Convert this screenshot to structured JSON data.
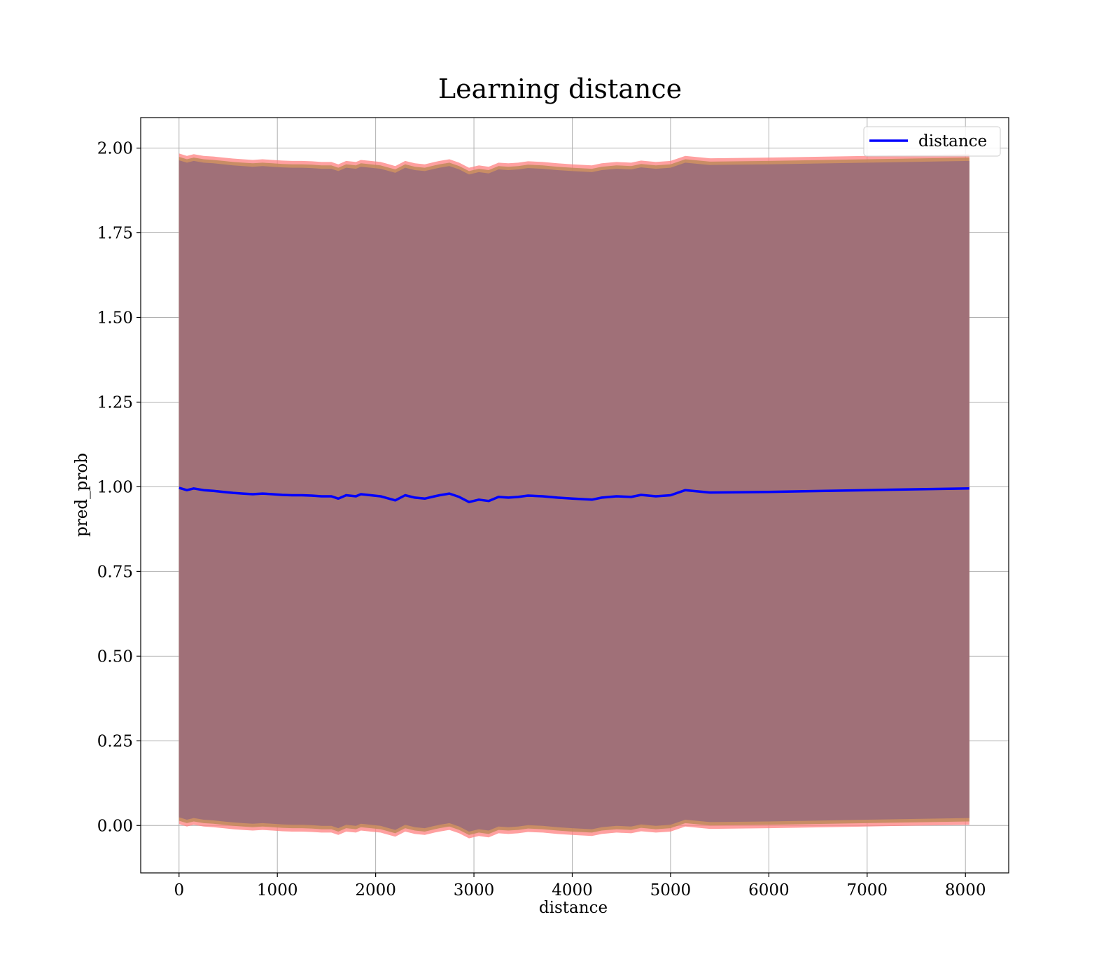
{
  "chart_data": {
    "type": "line",
    "title": "Learning distance",
    "xlabel": "distance",
    "ylabel": "pred_prob",
    "xlim": [
      -390,
      8440
    ],
    "ylim": [
      -0.14,
      2.09
    ],
    "xticks": [
      0,
      1000,
      2000,
      3000,
      4000,
      5000,
      6000,
      7000,
      8000
    ],
    "xtick_labels": [
      "0",
      "1000",
      "2000",
      "3000",
      "4000",
      "5000",
      "6000",
      "7000",
      "8000"
    ],
    "yticks": [
      0.0,
      0.25,
      0.5,
      0.75,
      1.0,
      1.25,
      1.5,
      1.75,
      2.0
    ],
    "ytick_labels": [
      "0.00",
      "0.25",
      "0.50",
      "0.75",
      "1.00",
      "1.25",
      "1.50",
      "1.75",
      "2.00"
    ],
    "grid": true,
    "legend": {
      "position": "top-right",
      "entries": [
        "distance"
      ]
    },
    "colors": {
      "line": "#0000ff",
      "band_outer": "#ff8080",
      "band_mid": "#bf8a5a",
      "band_inner": "#a07078"
    },
    "series": [
      {
        "name": "distance",
        "x": [
          0,
          80,
          150,
          250,
          350,
          450,
          550,
          650,
          750,
          850,
          950,
          1050,
          1150,
          1250,
          1350,
          1450,
          1550,
          1620,
          1700,
          1800,
          1850,
          1950,
          2050,
          2100,
          2200,
          2300,
          2400,
          2500,
          2600,
          2650,
          2750,
          2850,
          2950,
          3050,
          3150,
          3250,
          3350,
          3450,
          3550,
          3700,
          3850,
          4000,
          4200,
          4300,
          4450,
          4600,
          4700,
          4850,
          5000,
          5150,
          5400,
          6000,
          7000,
          8040
        ],
        "y": [
          0.997,
          0.99,
          0.995,
          0.99,
          0.988,
          0.985,
          0.982,
          0.98,
          0.978,
          0.98,
          0.978,
          0.976,
          0.975,
          0.975,
          0.974,
          0.972,
          0.972,
          0.965,
          0.975,
          0.972,
          0.978,
          0.975,
          0.972,
          0.968,
          0.96,
          0.975,
          0.968,
          0.965,
          0.972,
          0.975,
          0.98,
          0.97,
          0.955,
          0.962,
          0.958,
          0.97,
          0.968,
          0.97,
          0.974,
          0.972,
          0.968,
          0.965,
          0.962,
          0.968,
          0.972,
          0.97,
          0.976,
          0.972,
          0.975,
          0.99,
          0.983,
          0.985,
          0.99,
          0.995
        ],
        "band": [
          {
            "lower": 0.027,
            "upper": 1.967
          },
          {
            "lower": 0.017,
            "upper": 1.977
          },
          {
            "lower": 0.007,
            "upper": 1.987
          }
        ]
      }
    ]
  }
}
